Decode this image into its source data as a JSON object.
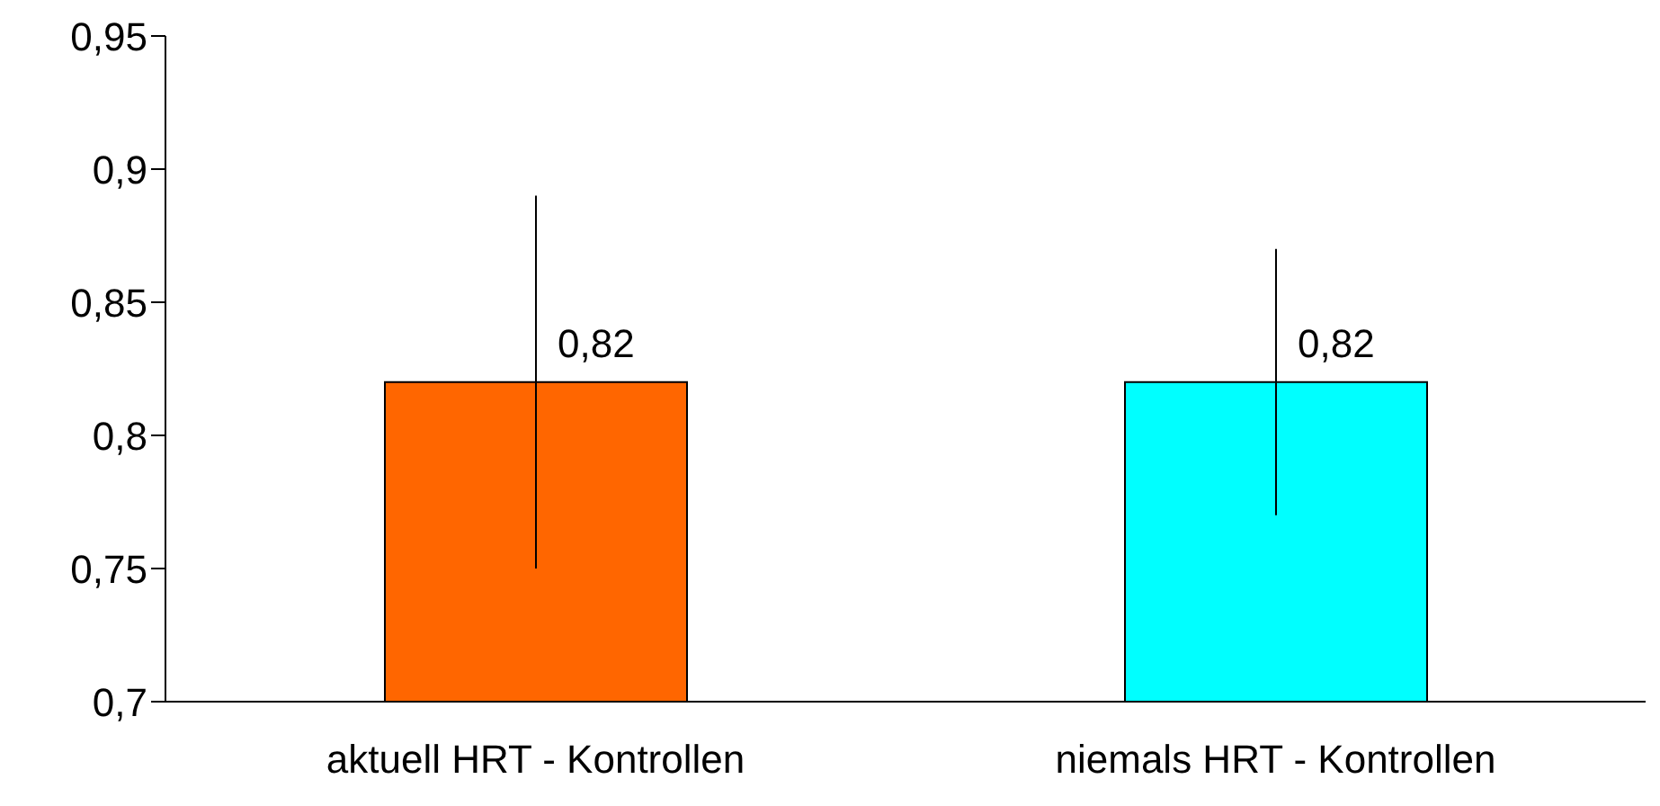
{
  "chart_data": {
    "type": "bar",
    "categories": [
      "aktuell HRT - Kontrollen",
      "niemals HRT - Kontrollen"
    ],
    "values": [
      0.82,
      0.82
    ],
    "colors": [
      "#ff6600",
      "#00ffff"
    ],
    "errors": [
      [
        0.75,
        0.89
      ],
      [
        0.77,
        0.87
      ]
    ],
    "value_labels": [
      "0,82",
      "0,82"
    ],
    "ylim": [
      0.7,
      0.95
    ],
    "yticks": [
      {
        "value": 0.7,
        "label": "0,7"
      },
      {
        "value": 0.75,
        "label": "0,75"
      },
      {
        "value": 0.8,
        "label": "0,8"
      },
      {
        "value": 0.85,
        "label": "0,85"
      },
      {
        "value": 0.9,
        "label": "0,9"
      },
      {
        "value": 0.95,
        "label": "0,95"
      }
    ],
    "grid": false,
    "legend": false
  }
}
